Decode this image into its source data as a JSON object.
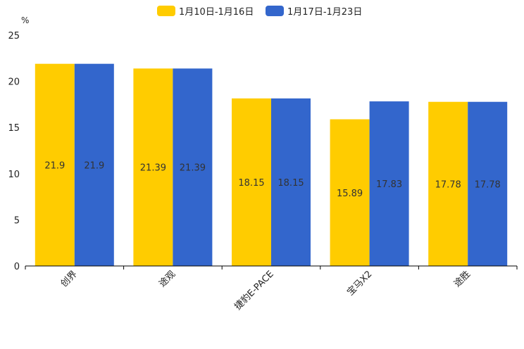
{
  "chart_data": {
    "type": "bar",
    "ylabel": "%",
    "ylim": [
      0,
      25
    ],
    "yticks": [
      0,
      5,
      10,
      15,
      20,
      25
    ],
    "categories": [
      "创界",
      "途观",
      "捷豹E-PACE",
      "宝马X2",
      "途胜"
    ],
    "series": [
      {
        "name": "1月10日-1月16日",
        "color": "#ffcc00",
        "values": [
          21.9,
          21.39,
          18.15,
          15.89,
          17.78
        ]
      },
      {
        "name": "1月17日-1月23日",
        "color": "#3366cc",
        "values": [
          21.9,
          21.39,
          18.15,
          17.83,
          17.78
        ]
      }
    ],
    "data_labels": [
      [
        "21.9",
        "21.39",
        "18.15",
        "15.89",
        "17.78"
      ],
      [
        "21.9",
        "21.39",
        "18.15",
        "17.83",
        "17.78"
      ]
    ],
    "legend_position": "top-center",
    "grid": false
  }
}
